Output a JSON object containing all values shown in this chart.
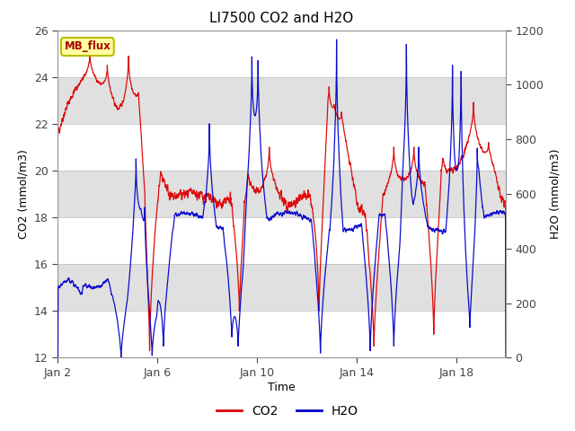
{
  "title": "LI7500 CO2 and H2O",
  "xlabel": "Time",
  "ylabel_left": "CO2 (mmol/m3)",
  "ylabel_right": "H2O (mmol/m3)",
  "ylim_left": [
    12,
    26
  ],
  "ylim_right": [
    0,
    1200
  ],
  "yticks_left": [
    12,
    14,
    16,
    18,
    20,
    22,
    24,
    26
  ],
  "yticks_right": [
    0,
    200,
    400,
    600,
    800,
    1000,
    1200
  ],
  "xtick_labels": [
    "Jan 2",
    "Jan 6",
    "Jan 10",
    "Jan 14",
    "Jan 18"
  ],
  "xtick_positions": [
    2,
    6,
    10,
    14,
    18
  ],
  "xlim": [
    2,
    20
  ],
  "color_co2": "#dd0000",
  "color_h2o": "#0000cc",
  "legend_label_co2": "CO2",
  "legend_label_h2o": "H2O",
  "annotation_text": "MB_flux",
  "bg_color": "#ffffff",
  "plot_bg_gray": "#e0e0e0",
  "plot_bg_white": "#ffffff",
  "seed": 42,
  "n_points": 3000,
  "x_start": 2.0,
  "x_end": 20.0
}
